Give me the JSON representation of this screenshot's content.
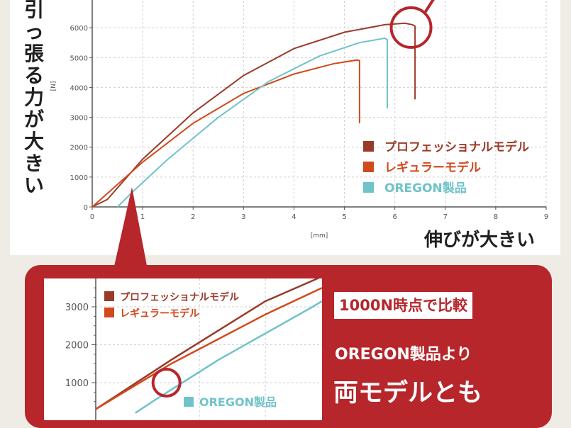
{
  "captions": {
    "y_emphasis": "引っ張る力が大きい",
    "x_emphasis": "伸びが大きい"
  },
  "callout": {
    "tag": "1000N時点で比較",
    "line1": "OREGON製品より",
    "line2": "両モデルとも"
  },
  "colors": {
    "professional": "#9a3b2a",
    "regular": "#d04a1c",
    "oregon": "#6fc3c9",
    "accent_red": "#b6262b"
  },
  "chart_data": [
    {
      "type": "line",
      "xlabel": "[mm]",
      "ylabel": "[N]",
      "xlim": [
        0,
        9
      ],
      "ylim": [
        0,
        7000
      ],
      "x_ticks": [
        "0",
        "1",
        "2",
        "3",
        "4",
        "5",
        "6",
        "7",
        "8",
        "9"
      ],
      "y_ticks": [
        "0",
        "1000",
        "2000",
        "3000",
        "4000",
        "5000",
        "6000"
      ],
      "grid": true,
      "legend_position": "bottom-right",
      "series": [
        {
          "name": "プロフェッショナルモデル",
          "color_key": "professional",
          "points": [
            [
              0,
              0
            ],
            [
              0.3,
              250
            ],
            [
              1,
              1600
            ],
            [
              2,
              3150
            ],
            [
              3,
              4400
            ],
            [
              4,
              5300
            ],
            [
              5,
              5850
            ],
            [
              5.8,
              6100
            ],
            [
              6.2,
              6150
            ],
            [
              6.35,
              6100
            ],
            [
              6.4,
              6050
            ],
            [
              6.4,
              3600
            ]
          ]
        },
        {
          "name": "レギュラーモデル",
          "color_key": "regular",
          "points": [
            [
              0,
              0
            ],
            [
              0.2,
              300
            ],
            [
              1,
              1500
            ],
            [
              2,
              2800
            ],
            [
              3,
              3800
            ],
            [
              4,
              4450
            ],
            [
              4.8,
              4800
            ],
            [
              5.25,
              4920
            ],
            [
              5.3,
              4900
            ],
            [
              5.3,
              2800
            ]
          ]
        },
        {
          "name": "OREGON製品",
          "color_key": "oregon",
          "points": [
            [
              0.5,
              0
            ],
            [
              0.8,
              500
            ],
            [
              1.5,
              1600
            ],
            [
              2.5,
              3000
            ],
            [
              3.5,
              4200
            ],
            [
              4.5,
              5050
            ],
            [
              5.3,
              5500
            ],
            [
              5.8,
              5650
            ],
            [
              5.85,
              5600
            ],
            [
              5.85,
              3300
            ]
          ]
        }
      ],
      "annotation": {
        "type": "circle",
        "x": 6.35,
        "y": 6100
      }
    },
    {
      "type": "line",
      "y_ticks": [
        "1000",
        "2000",
        "3000"
      ],
      "ylim": [
        200,
        3800
      ],
      "xlim": [
        0.2,
        2.6
      ],
      "grid": true,
      "legend_position": "top-left",
      "series": [
        {
          "name": "プロフェッショナルモデル",
          "color_key": "professional",
          "points": [
            [
              0.2,
              300
            ],
            [
              1,
              1600
            ],
            [
              2,
              3150
            ],
            [
              2.6,
              3800
            ]
          ]
        },
        {
          "name": "レギュラーモデル",
          "color_key": "regular",
          "points": [
            [
              0.2,
              300
            ],
            [
              1,
              1500
            ],
            [
              2,
              2800
            ],
            [
              2.6,
              3500
            ]
          ]
        },
        {
          "name": "OREGON製品",
          "color_key": "oregon",
          "points": [
            [
              0.62,
              200
            ],
            [
              0.8,
              500
            ],
            [
              1.5,
              1600
            ],
            [
              2.5,
              3000
            ],
            [
              2.6,
              3150
            ]
          ]
        }
      ],
      "annotation": {
        "type": "circle",
        "x": 0.95,
        "y": 1000
      }
    }
  ]
}
